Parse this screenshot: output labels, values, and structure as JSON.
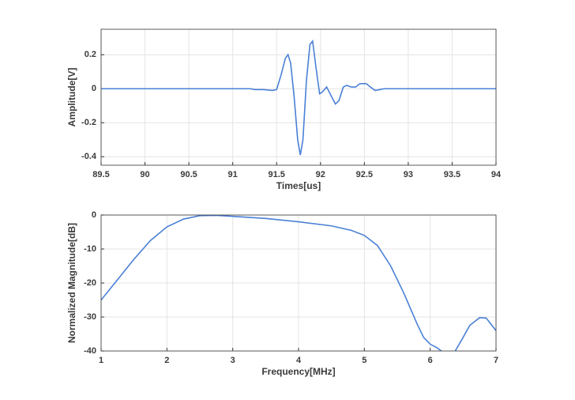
{
  "chart_data": [
    {
      "type": "line",
      "xlabel": "Times[us]",
      "ylabel": "Amplitude[V]",
      "xlim": [
        89.5,
        94
      ],
      "ylim": [
        -0.45,
        0.35
      ],
      "xticks": [
        89.5,
        90,
        90.5,
        91,
        91.5,
        92,
        92.5,
        93,
        93.5,
        94
      ],
      "yticks": [
        -0.4,
        -0.2,
        0,
        0.2
      ],
      "grid": true,
      "x": [
        89.5,
        91.2,
        91.25,
        91.35,
        91.45,
        91.5,
        91.55,
        91.6,
        91.63,
        91.66,
        91.7,
        91.74,
        91.77,
        91.8,
        91.84,
        91.88,
        91.91,
        91.95,
        91.99,
        92.02,
        92.07,
        92.12,
        92.17,
        92.21,
        92.26,
        92.3,
        92.35,
        92.4,
        92.45,
        92.52,
        92.57,
        92.62,
        92.68,
        92.72,
        92.8,
        94
      ],
      "series": [
        {
          "color": "#4a80d6",
          "values": [
            0,
            0,
            -0.005,
            -0.005,
            -0.01,
            -0.005,
            0.08,
            0.18,
            0.2,
            0.15,
            -0.05,
            -0.3,
            -0.39,
            -0.3,
            0.05,
            0.26,
            0.28,
            0.12,
            -0.03,
            -0.02,
            0.01,
            -0.04,
            -0.09,
            -0.07,
            0.01,
            0.02,
            0.01,
            0.01,
            0.03,
            0.03,
            0.01,
            -0.01,
            -0.005,
            0,
            0,
            0
          ]
        }
      ]
    },
    {
      "type": "line",
      "xlabel": "Frequency[MHz]",
      "ylabel": "Normalized Magnitude[dB]",
      "xlim": [
        1,
        7
      ],
      "ylim": [
        -40,
        0
      ],
      "xticks": [
        1,
        2,
        3,
        4,
        5,
        6,
        7
      ],
      "yticks": [
        -40,
        -30,
        -20,
        -10,
        0
      ],
      "grid": true,
      "x": [
        1,
        1.25,
        1.5,
        1.75,
        2,
        2.25,
        2.5,
        2.75,
        3,
        3.5,
        4,
        4.5,
        4.8,
        5,
        5.2,
        5.4,
        5.6,
        5.8,
        5.9,
        6,
        6.1,
        6.17,
        6.27,
        6.38,
        6.5,
        6.6,
        6.75,
        6.85,
        7
      ],
      "series": [
        {
          "color": "#4a80d6",
          "values": [
            -25,
            -19,
            -13,
            -7.5,
            -3.5,
            -1.2,
            -0.2,
            -0.1,
            -0.4,
            -1,
            -2,
            -3.2,
            -4.5,
            -6,
            -9,
            -15,
            -23,
            -32,
            -36,
            -38,
            -39,
            -40,
            null,
            -40,
            -36,
            -32.5,
            -30.2,
            -30.3,
            -34
          ]
        }
      ]
    }
  ]
}
